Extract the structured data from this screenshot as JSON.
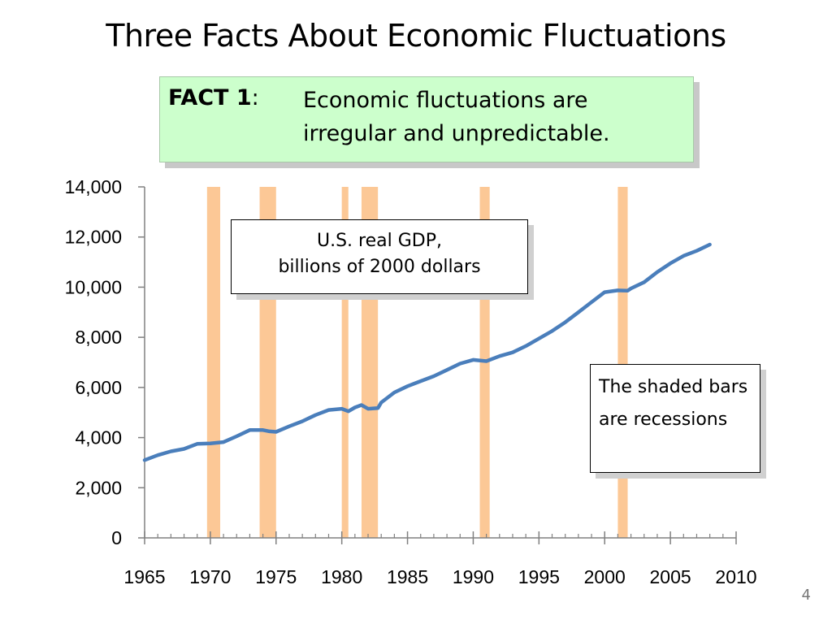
{
  "slide": {
    "title": "Three Facts About Economic Fluctuations",
    "page_number": "4"
  },
  "fact_box": {
    "label": "FACT 1",
    "label_suffix": ":",
    "text": "Economic fluctuations are irregular and unpredictable."
  },
  "callouts": {
    "gdp_line1": "U.S. real GDP,",
    "gdp_line2": "billions of 2000 dollars",
    "recessions": "The shaded bars are recessions"
  },
  "colors": {
    "line": "#4a7ebb",
    "recession": "#fcc896",
    "fact_bg": "#ccffcc"
  },
  "chart_data": {
    "type": "line",
    "xlim": [
      1965,
      2010
    ],
    "ylim": [
      0,
      14000
    ],
    "x_ticks": [
      1965,
      1970,
      1975,
      1980,
      1985,
      1990,
      1995,
      2000,
      2005,
      2010
    ],
    "x_tick_labels": [
      "1965",
      "1970",
      "1975",
      "1980",
      "1985",
      "1990",
      "1995",
      "2000",
      "2005",
      "2010"
    ],
    "y_ticks": [
      0,
      2000,
      4000,
      6000,
      8000,
      10000,
      12000,
      14000
    ],
    "y_tick_labels": [
      "0",
      "2,000",
      "4,000",
      "6,000",
      "8,000",
      "10,000",
      "12,000",
      "14,000"
    ],
    "recessions": [
      [
        1969.75,
        1970.75
      ],
      [
        1973.75,
        1975.0
      ],
      [
        1980.0,
        1980.5
      ],
      [
        1981.5,
        1982.75
      ],
      [
        1990.5,
        1991.25
      ],
      [
        2001.0,
        2001.75
      ]
    ],
    "series": [
      {
        "x": [
          1965,
          1966,
          1967,
          1968,
          1969,
          1970,
          1971,
          1972,
          1973,
          1974,
          1974.5,
          1975,
          1976,
          1977,
          1978,
          1979,
          1980,
          1980.5,
          1981,
          1981.5,
          1982,
          1982.75,
          1983,
          1984,
          1985,
          1986,
          1987,
          1988,
          1989,
          1990,
          1991,
          1992,
          1993,
          1994,
          1995,
          1996,
          1997,
          1998,
          1999,
          2000,
          2001,
          2001.75,
          2002,
          2003,
          2004,
          2005,
          2006,
          2007,
          2008
        ],
        "values": [
          3100,
          3300,
          3450,
          3550,
          3750,
          3770,
          3820,
          4050,
          4300,
          4300,
          4250,
          4230,
          4450,
          4650,
          4900,
          5100,
          5150,
          5050,
          5200,
          5300,
          5150,
          5180,
          5400,
          5800,
          6050,
          6250,
          6450,
          6700,
          6950,
          7100,
          7050,
          7250,
          7400,
          7650,
          7950,
          8250,
          8600,
          9000,
          9400,
          9800,
          9870,
          9860,
          9950,
          10200,
          10600,
          10950,
          11250,
          11450,
          11700
        ]
      }
    ]
  }
}
